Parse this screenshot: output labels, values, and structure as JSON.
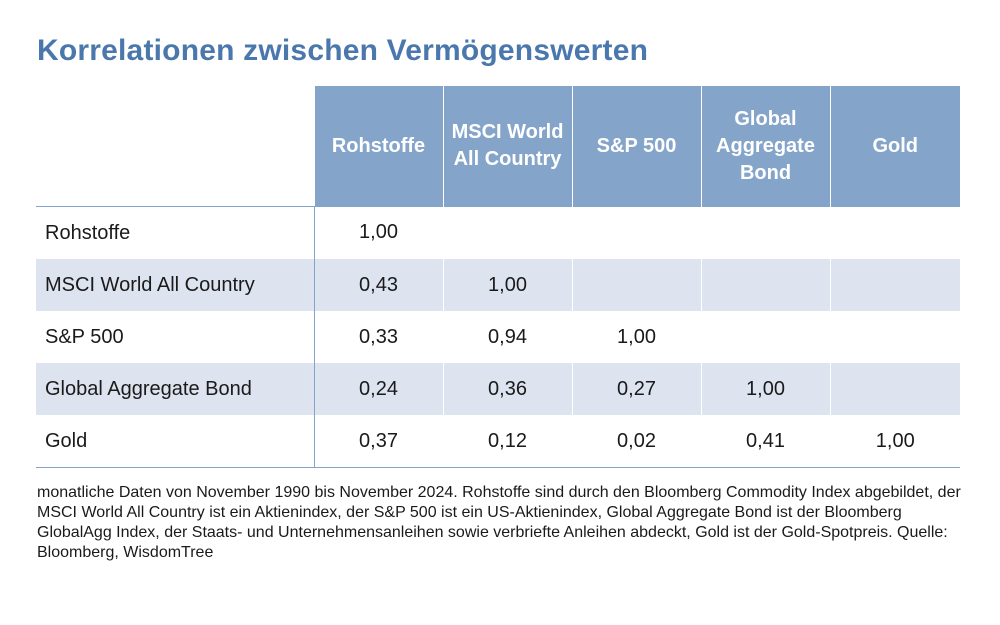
{
  "title": "Korrelationen zwischen Vermögenswerten",
  "chart_data": {
    "type": "table",
    "title": "Korrelationen zwischen Vermögenswerten",
    "columns": [
      "Rohstoffe",
      "MSCI World All Country",
      "S&P 500",
      "Global Aggregate Bond",
      "Gold"
    ],
    "rows": [
      {
        "label": "Rohstoffe",
        "values": [
          "1,00",
          "",
          "",
          "",
          ""
        ]
      },
      {
        "label": "MSCI World All Country",
        "values": [
          "0,43",
          "1,00",
          "",
          "",
          ""
        ]
      },
      {
        "label": "S&P 500",
        "values": [
          "0,33",
          "0,94",
          "1,00",
          "",
          ""
        ]
      },
      {
        "label": "Global Aggregate Bond",
        "values": [
          "0,24",
          "0,36",
          "0,27",
          "1,00",
          ""
        ]
      },
      {
        "label": "Gold",
        "values": [
          "0,37",
          "0,12",
          "0,02",
          "0,41",
          "1,00"
        ]
      }
    ]
  },
  "footnote": "monatliche Daten von November 1990 bis November 2024. Rohstoffe sind durch den Bloomberg Commodity Index abgebildet, der MSCI World All Country ist ein Aktienindex, der S&P 500 ist ein US-Aktienindex, Global Aggregate Bond ist der Bloomberg GlobalAgg Index, der Staats- und Unternehmensanleihen sowie verbriefte Anleihen abdeckt, Gold ist der Gold-Spotpreis. Quelle: Bloomberg, WisdomTree",
  "colors": {
    "title": "#4a78ad",
    "header": "#84a5c9",
    "shade": "#dde4f0"
  }
}
